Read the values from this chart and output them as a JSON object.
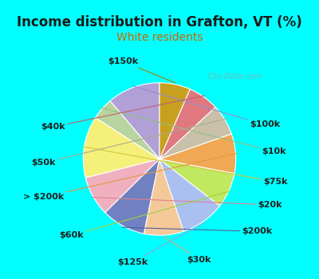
{
  "title": "Income distribution in Grafton, VT (%)",
  "subtitle": "White residents",
  "background_color": "#00FFFF",
  "chart_bg_color": "#d8ede0",
  "labels": [
    "$100k",
    "$10k",
    "$75k",
    "$20k",
    "$200k",
    "$30k",
    "$125k",
    "$60k",
    "> $200k",
    "$50k",
    "$40k",
    "$150k"
  ],
  "values": [
    12,
    5,
    14,
    9,
    10,
    9,
    10,
    8,
    9,
    7,
    7,
    7
  ],
  "colors": [
    "#b0a0d5",
    "#b8d4a0",
    "#f5f07a",
    "#f0b0c0",
    "#7080c0",
    "#f5c89a",
    "#aac0f0",
    "#c0e860",
    "#f0a855",
    "#c8c0a8",
    "#e07880",
    "#c8a020"
  ],
  "label_fontsize": 8,
  "title_fontsize": 12,
  "subtitle_fontsize": 10,
  "startangle": 90,
  "watermark": "City-Data.com",
  "label_color": "#202020"
}
